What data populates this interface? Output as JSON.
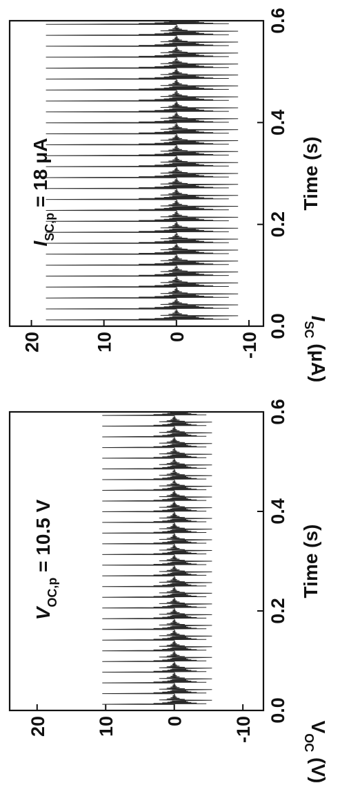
{
  "chart_data": [
    {
      "type": "line",
      "panel": "voltage",
      "title": "",
      "xlabel": "Time (s)",
      "ylabel": "V_OC (V)",
      "xlim": [
        0,
        0.6
      ],
      "ylim": [
        -13,
        24
      ],
      "xticks": [
        0.0,
        0.2,
        0.4,
        0.6
      ],
      "xtick_labels": [
        "0.0",
        "0.2",
        "0.4",
        "0.6"
      ],
      "yticks": [
        -10,
        0,
        10,
        20
      ],
      "ytick_labels": [
        "-10",
        "0",
        "10",
        "20"
      ],
      "annotation": "V_OC,p = 10.5 V",
      "peak_value": 10.5,
      "min_value": -5.5,
      "pulse_count": 28,
      "period_s": 0.0215,
      "grid": false,
      "color": "#2a2a2a"
    },
    {
      "type": "line",
      "panel": "current",
      "title": "",
      "xlabel": "Time (s)",
      "ylabel": "I_SC (μA)",
      "xlim": [
        0,
        0.6
      ],
      "ylim": [
        -12,
        23
      ],
      "xticks": [
        0.0,
        0.2,
        0.4,
        0.6
      ],
      "xtick_labels": [
        "0.0",
        "0.2",
        "0.4",
        "0.6"
      ],
      "yticks": [
        -10,
        0,
        10,
        20
      ],
      "ytick_labels": [
        "-10",
        "0",
        "10",
        "20"
      ],
      "annotation": "I_SC,p = 18 μA",
      "peak_value": 18,
      "min_value": -8.5,
      "pulse_count": 28,
      "period_s": 0.0215,
      "grid": false,
      "color": "#2a2a2a"
    }
  ]
}
